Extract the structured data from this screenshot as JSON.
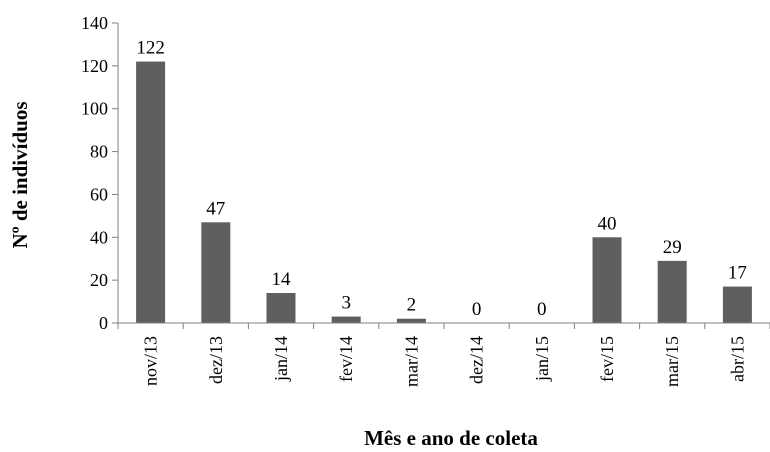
{
  "chart_data": {
    "type": "bar",
    "categories": [
      "nov/13",
      "dez/13",
      "jan/14",
      "fev/14",
      "mar/14",
      "dez/14",
      "jan/15",
      "fev/15",
      "mar/15",
      "abr/15"
    ],
    "values": [
      122,
      47,
      14,
      3,
      2,
      0,
      0,
      40,
      29,
      17
    ],
    "data_labels": [
      "122",
      "47",
      "14",
      "3",
      "2",
      "0",
      "0",
      "40",
      "29",
      "17"
    ],
    "xlabel": "Mês e ano de coleta",
    "ylabel": "Nº de indivíduos",
    "ylim": [
      0,
      140
    ],
    "yticks": [
      0,
      20,
      40,
      60,
      80,
      100,
      120,
      140
    ],
    "grid": false,
    "legend": "none",
    "bar_color": "#5f5f5f",
    "axis_color": "#808080"
  }
}
